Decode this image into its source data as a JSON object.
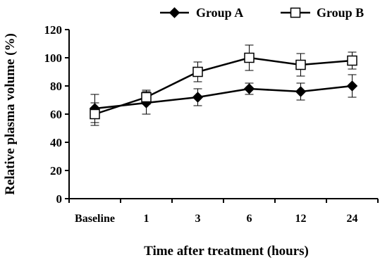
{
  "chart_data": {
    "type": "line",
    "title": "",
    "xlabel": "Time after treatment (hours)",
    "ylabel": "Relative plasma volume (%)",
    "categories": [
      "Baseline",
      "1",
      "3",
      "6",
      "12",
      "24"
    ],
    "ylim": [
      0,
      120
    ],
    "yticks": [
      0,
      20,
      40,
      60,
      80,
      100,
      120
    ],
    "grid": false,
    "legend_position": "top",
    "series": [
      {
        "name": "Group A",
        "marker": "filled-diamond",
        "color": "#000000",
        "values": [
          64,
          68,
          72,
          78,
          76,
          80
        ],
        "errors": [
          10,
          8,
          6,
          4,
          6,
          8
        ]
      },
      {
        "name": "Group B",
        "marker": "open-square",
        "color": "#000000",
        "values": [
          60,
          72,
          90,
          100,
          95,
          98
        ],
        "errors": [
          8,
          5,
          7,
          9,
          8,
          6
        ]
      }
    ]
  }
}
